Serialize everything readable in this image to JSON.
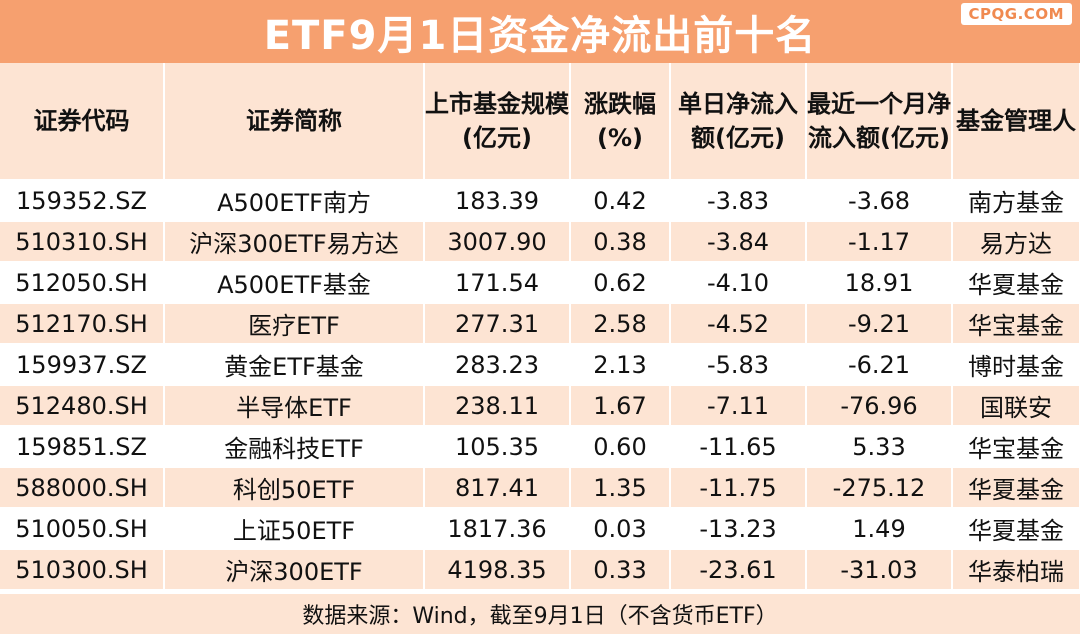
{
  "title": "ETF9月1日资金净流出前十名",
  "watermark": "CPQG.COM",
  "table": {
    "headers": [
      "证券代码",
      "证券简称",
      "上市基金规模(亿元)",
      "涨跌幅(%)",
      "单日净流入额(亿元)",
      "最近一个月净流入额(亿元)",
      "基金管理人"
    ],
    "rows": [
      [
        "159352.SZ",
        "A500ETF南方",
        "183.39",
        "0.42",
        "-3.83",
        "-3.68",
        "南方基金"
      ],
      [
        "510310.SH",
        "沪深300ETF易方达",
        "3007.90",
        "0.38",
        "-3.84",
        "-1.17",
        "易方达"
      ],
      [
        "512050.SH",
        "A500ETF基金",
        "171.54",
        "0.62",
        "-4.10",
        "18.91",
        "华夏基金"
      ],
      [
        "512170.SH",
        "医疗ETF",
        "277.31",
        "2.58",
        "-4.52",
        "-9.21",
        "华宝基金"
      ],
      [
        "159937.SZ",
        "黄金ETF基金",
        "283.23",
        "2.13",
        "-5.83",
        "-6.21",
        "博时基金"
      ],
      [
        "512480.SH",
        "半导体ETF",
        "238.11",
        "1.67",
        "-7.11",
        "-76.96",
        "国联安"
      ],
      [
        "159851.SZ",
        "金融科技ETF",
        "105.35",
        "0.60",
        "-11.65",
        "5.33",
        "华宝基金"
      ],
      [
        "588000.SH",
        "科创50ETF",
        "817.41",
        "1.35",
        "-11.75",
        "-275.12",
        "华夏基金"
      ],
      [
        "510050.SH",
        "上证50ETF",
        "1817.36",
        "0.03",
        "-13.23",
        "1.49",
        "华夏基金"
      ],
      [
        "510300.SH",
        "沪深300ETF",
        "4198.35",
        "0.33",
        "-23.61",
        "-31.03",
        "华泰柏瑞"
      ]
    ]
  },
  "footer": "数据来源：Wind，截至9月1日（不含货币ETF）",
  "colors": {
    "title_bg": "#f6a06f",
    "band": "#fde4d3",
    "text": "#111111"
  }
}
